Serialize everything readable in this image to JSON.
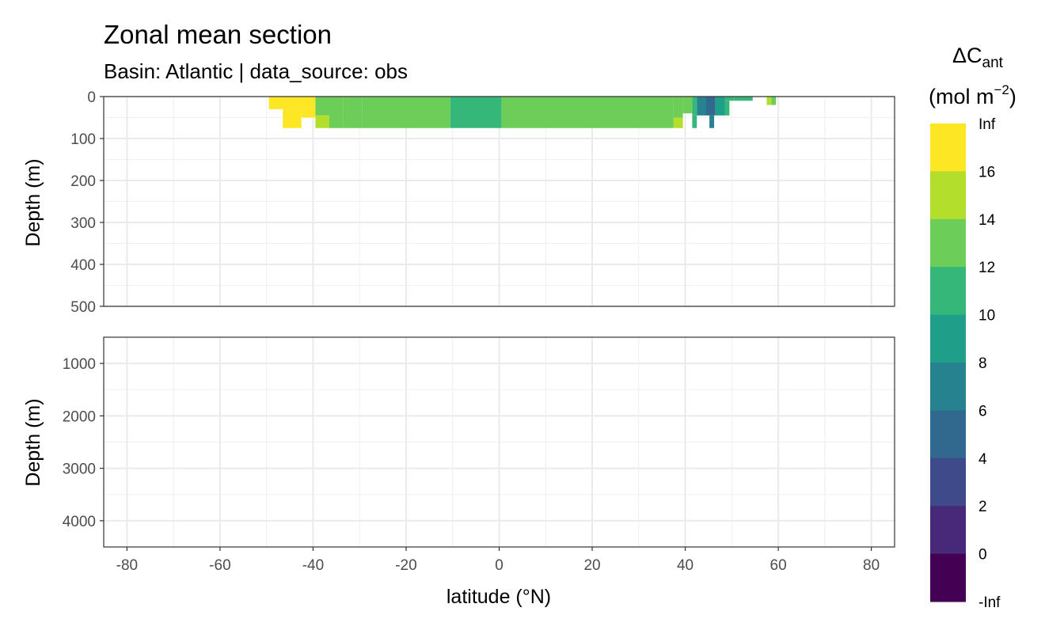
{
  "chart_data": {
    "type": "heatmap",
    "title": "Zonal mean section",
    "subtitle": "Basin: Atlantic | data_source: obs",
    "xlabel": "latitude (°N)",
    "ylabel": "Depth (m)",
    "xlim": [
      -85,
      85
    ],
    "x_ticks": [
      -80,
      -60,
      -40,
      -20,
      0,
      20,
      40,
      60,
      80
    ],
    "x_tick_labels": [
      "-80",
      "-60",
      "-40",
      "-20",
      "0",
      "20",
      "40",
      "60",
      "80"
    ],
    "grid": true,
    "panels": [
      {
        "name": "upper",
        "ylim": [
          0,
          500
        ],
        "y_ticks": [
          0,
          100,
          200,
          300,
          400,
          500
        ],
        "y_tick_labels": [
          "0",
          "100",
          "200",
          "300",
          "400",
          "500"
        ],
        "cells": [
          {
            "lat": [
              -49.5,
              -39.5
            ],
            "depth": [
              0,
              30
            ],
            "value": 17
          },
          {
            "lat": [
              -46.5,
              -42.5
            ],
            "depth": [
              30,
              75
            ],
            "value": 17
          },
          {
            "lat": [
              -42.5,
              -39.5
            ],
            "depth": [
              30,
              50
            ],
            "value": 17
          },
          {
            "lat": [
              -39.5,
              -36.5
            ],
            "depth": [
              0,
              45
            ],
            "value": 13
          },
          {
            "lat": [
              -39.5,
              -36.5
            ],
            "depth": [
              45,
              75
            ],
            "value": 15
          },
          {
            "lat": [
              -36.5,
              -33.5
            ],
            "depth": [
              0,
              75
            ],
            "value": 13
          },
          {
            "lat": [
              -33.5,
              -29.5
            ],
            "depth": [
              0,
              75
            ],
            "value": 13
          },
          {
            "lat": [
              -29.5,
              -10.5
            ],
            "depth": [
              0,
              75
            ],
            "value": 13
          },
          {
            "lat": [
              -10.5,
              0.5
            ],
            "depth": [
              0,
              75
            ],
            "value": 11
          },
          {
            "lat": [
              0.5,
              37.5
            ],
            "depth": [
              0,
              75
            ],
            "value": 13
          },
          {
            "lat": [
              37.5,
              39.5
            ],
            "depth": [
              0,
              50
            ],
            "value": 13
          },
          {
            "lat": [
              37.5,
              39.5
            ],
            "depth": [
              50,
              75
            ],
            "value": 15
          },
          {
            "lat": [
              39.5,
              41.5
            ],
            "depth": [
              0,
              40
            ],
            "value": 13
          },
          {
            "lat": [
              41.5,
              42.5
            ],
            "depth": [
              0,
              45
            ],
            "value": 11
          },
          {
            "lat": [
              41.5,
              42.5
            ],
            "depth": [
              45,
              75
            ],
            "value": 11
          },
          {
            "lat": [
              42.5,
              44.5
            ],
            "depth": [
              0,
              45
            ],
            "value": 7
          },
          {
            "lat": [
              44.5,
              46.5
            ],
            "depth": [
              0,
              45
            ],
            "value": 5
          },
          {
            "lat": [
              45.2,
              46.2
            ],
            "depth": [
              45,
              75
            ],
            "value": 7
          },
          {
            "lat": [
              46.5,
              48.5
            ],
            "depth": [
              0,
              45
            ],
            "value": 9
          },
          {
            "lat": [
              48.5,
              50.5
            ],
            "depth": [
              0,
              10
            ],
            "value": 11
          },
          {
            "lat": [
              48.5,
              49.5
            ],
            "depth": [
              10,
              45
            ],
            "value": 11
          },
          {
            "lat": [
              50.5,
              54.5
            ],
            "depth": [
              0,
              10
            ],
            "value": 11
          },
          {
            "lat": [
              57.5,
              58.5
            ],
            "depth": [
              0,
              20
            ],
            "value": 15
          },
          {
            "lat": [
              58.5,
              59.5
            ],
            "depth": [
              0,
              20
            ],
            "value": 13
          }
        ]
      },
      {
        "name": "lower",
        "ylim": [
          500,
          4500
        ],
        "y_ticks": [
          1000,
          2000,
          3000,
          4000
        ],
        "y_tick_labels": [
          "1000",
          "2000",
          "3000",
          "4000"
        ],
        "cells": []
      }
    ],
    "legend": {
      "title_main": "ΔC",
      "title_sub": "ant",
      "units_pre": "(mol m",
      "units_sup": "−2",
      "units_post": ")",
      "position": "right",
      "breaks_labels": [
        "Inf",
        "16",
        "14",
        "12",
        "10",
        "8",
        "6",
        "4",
        "2",
        "0",
        "-Inf"
      ],
      "bins": [
        {
          "range": "16 to Inf",
          "color": "#FDE725"
        },
        {
          "range": "14 to 16",
          "color": "#B4DE2C"
        },
        {
          "range": "12 to 14",
          "color": "#6DCD59"
        },
        {
          "range": "10 to 12",
          "color": "#35B779"
        },
        {
          "range": "8 to 10",
          "color": "#1F9E89"
        },
        {
          "range": "6 to 8",
          "color": "#26828E"
        },
        {
          "range": "4 to 6",
          "color": "#31688E"
        },
        {
          "range": "2 to 4",
          "color": "#3E4A89"
        },
        {
          "range": "0 to 2",
          "color": "#482878"
        },
        {
          "range": "-Inf to 0",
          "color": "#440154"
        }
      ]
    }
  }
}
